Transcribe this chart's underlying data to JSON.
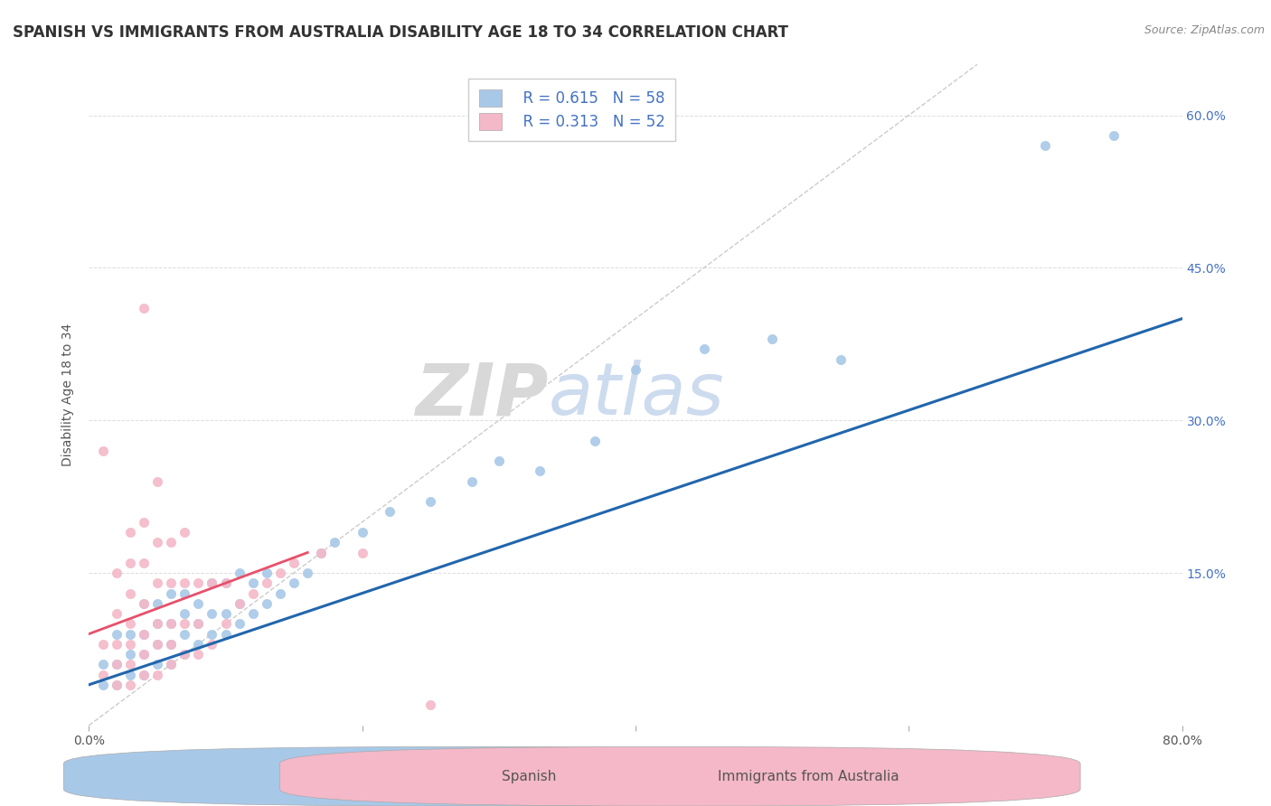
{
  "title": "SPANISH VS IMMIGRANTS FROM AUSTRALIA DISABILITY AGE 18 TO 34 CORRELATION CHART",
  "source_text": "Source: ZipAtlas.com",
  "ylabel": "Disability Age 18 to 34",
  "xlim": [
    0.0,
    0.8
  ],
  "ylim": [
    0.0,
    0.65
  ],
  "xticks": [
    0.0,
    0.2,
    0.4,
    0.6,
    0.8
  ],
  "xticklabels": [
    "0.0%",
    "",
    "",
    "",
    "80.0%"
  ],
  "yticks": [
    0.0,
    0.15,
    0.3,
    0.45,
    0.6
  ],
  "yticklabels_right": [
    "",
    "15.0%",
    "30.0%",
    "45.0%",
    "60.0%"
  ],
  "blue_color": "#a8c8e8",
  "pink_color": "#f4b8c8",
  "blue_line_color": "#2166ac",
  "pink_line_color": "#e8506a",
  "legend_blue_R": "R = 0.615",
  "legend_blue_N": "N = 58",
  "legend_pink_R": "R = 0.313",
  "legend_pink_N": "N = 52",
  "watermark_zip": "ZIP",
  "watermark_atlas": "atlas",
  "background_color": "#ffffff",
  "grid_color": "#dddddd",
  "blue_scatter_x": [
    0.01,
    0.01,
    0.02,
    0.02,
    0.02,
    0.03,
    0.03,
    0.03,
    0.04,
    0.04,
    0.04,
    0.04,
    0.05,
    0.05,
    0.05,
    0.05,
    0.06,
    0.06,
    0.06,
    0.06,
    0.07,
    0.07,
    0.07,
    0.07,
    0.08,
    0.08,
    0.08,
    0.09,
    0.09,
    0.09,
    0.1,
    0.1,
    0.1,
    0.11,
    0.11,
    0.11,
    0.12,
    0.12,
    0.13,
    0.13,
    0.14,
    0.15,
    0.16,
    0.17,
    0.18,
    0.2,
    0.22,
    0.25,
    0.28,
    0.3,
    0.33,
    0.37,
    0.4,
    0.45,
    0.5,
    0.55,
    0.7,
    0.75
  ],
  "blue_scatter_y": [
    0.04,
    0.06,
    0.04,
    0.06,
    0.09,
    0.05,
    0.07,
    0.09,
    0.05,
    0.07,
    0.09,
    0.12,
    0.06,
    0.08,
    0.1,
    0.12,
    0.06,
    0.08,
    0.1,
    0.13,
    0.07,
    0.09,
    0.11,
    0.13,
    0.08,
    0.1,
    0.12,
    0.09,
    0.11,
    0.14,
    0.09,
    0.11,
    0.14,
    0.1,
    0.12,
    0.15,
    0.11,
    0.14,
    0.12,
    0.15,
    0.13,
    0.14,
    0.15,
    0.17,
    0.18,
    0.19,
    0.21,
    0.22,
    0.24,
    0.26,
    0.25,
    0.28,
    0.35,
    0.37,
    0.38,
    0.36,
    0.57,
    0.58
  ],
  "pink_scatter_x": [
    0.01,
    0.01,
    0.01,
    0.02,
    0.02,
    0.02,
    0.02,
    0.02,
    0.03,
    0.03,
    0.03,
    0.03,
    0.03,
    0.03,
    0.03,
    0.04,
    0.04,
    0.04,
    0.04,
    0.04,
    0.04,
    0.04,
    0.05,
    0.05,
    0.05,
    0.05,
    0.05,
    0.05,
    0.06,
    0.06,
    0.06,
    0.06,
    0.06,
    0.07,
    0.07,
    0.07,
    0.07,
    0.08,
    0.08,
    0.08,
    0.09,
    0.09,
    0.1,
    0.1,
    0.11,
    0.12,
    0.13,
    0.14,
    0.15,
    0.17,
    0.2,
    0.25
  ],
  "pink_scatter_y": [
    0.05,
    0.08,
    0.27,
    0.04,
    0.06,
    0.08,
    0.11,
    0.15,
    0.04,
    0.06,
    0.08,
    0.1,
    0.13,
    0.16,
    0.19,
    0.05,
    0.07,
    0.09,
    0.12,
    0.16,
    0.2,
    0.41,
    0.05,
    0.08,
    0.1,
    0.14,
    0.18,
    0.24,
    0.06,
    0.08,
    0.1,
    0.14,
    0.18,
    0.07,
    0.1,
    0.14,
    0.19,
    0.07,
    0.1,
    0.14,
    0.08,
    0.14,
    0.1,
    0.14,
    0.12,
    0.13,
    0.14,
    0.15,
    0.16,
    0.17,
    0.17,
    0.02
  ],
  "title_fontsize": 12,
  "axis_label_fontsize": 10,
  "tick_fontsize": 10,
  "legend_fontsize": 12
}
